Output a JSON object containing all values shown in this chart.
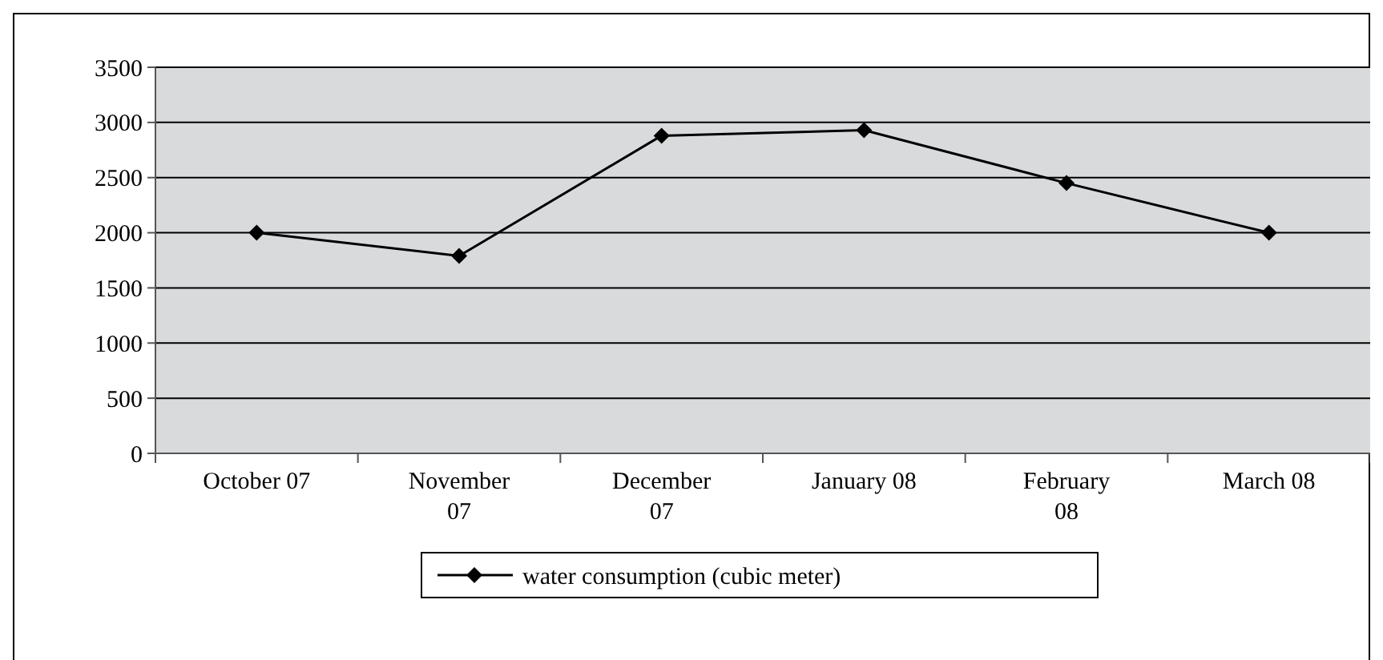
{
  "chart_data": {
    "type": "line",
    "categories": [
      "October 07",
      "November 07",
      "December 07",
      "January 08",
      "February 08",
      "March 08"
    ],
    "series": [
      {
        "name": "water consumption (cubic meter)",
        "color": "#000000",
        "values": [
          2000,
          1790,
          2880,
          2930,
          2450,
          2000
        ]
      }
    ],
    "ylim": [
      0,
      3500
    ],
    "yticks": [
      0,
      500,
      1000,
      1500,
      2000,
      2500,
      3000,
      3500
    ],
    "grid": "y",
    "legend": "bottom",
    "marker": "diamond",
    "line_style": "solid"
  }
}
